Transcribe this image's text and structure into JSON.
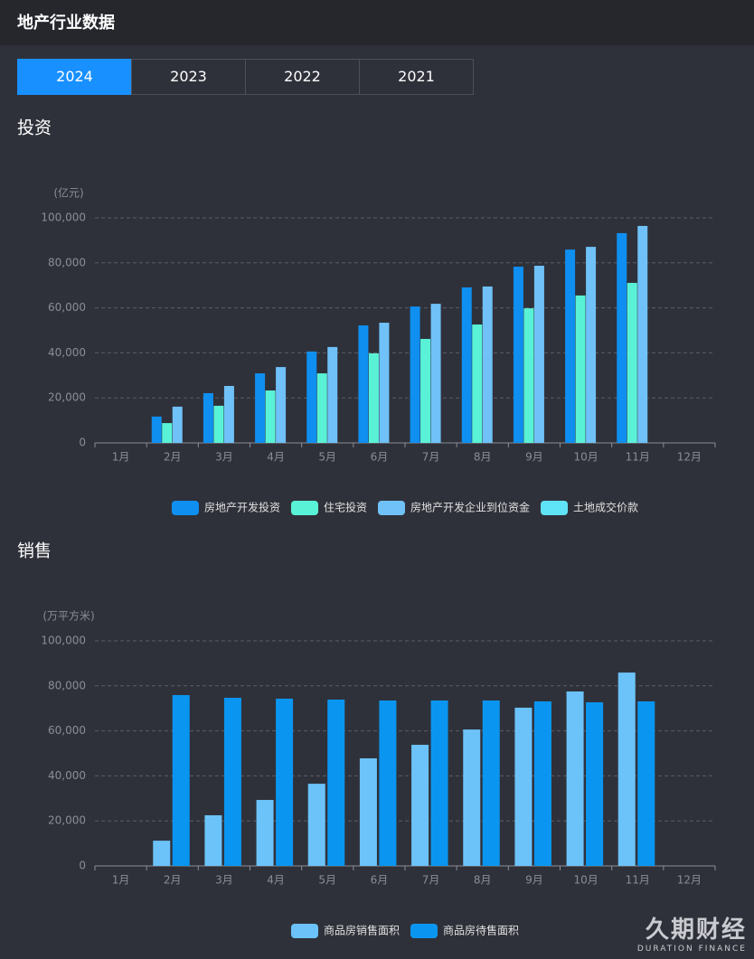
{
  "header": {
    "title": "地产行业数据"
  },
  "tabs": [
    "2024",
    "2023",
    "2022",
    "2021"
  ],
  "watermark": {
    "name": "久期财经",
    "subtitle": "DURATION FINANCE"
  },
  "chart_data": [
    {
      "type": "bar",
      "title": "投资",
      "y_label": "(亿元)",
      "categories": [
        "1月",
        "2月",
        "3月",
        "4月",
        "5月",
        "6月",
        "7月",
        "8月",
        "9月",
        "10月",
        "11月",
        "12月"
      ],
      "series": [
        {
          "name": "房地产开发投资",
          "color": "#0f8ff0",
          "values": [
            null,
            11700,
            22100,
            30900,
            40600,
            52200,
            60600,
            69100,
            78300,
            85900,
            93200,
            null
          ]
        },
        {
          "name": "住宅投资",
          "color": "#5af2d6",
          "values": [
            null,
            8800,
            16500,
            23300,
            30900,
            39800,
            46200,
            52600,
            59800,
            65500,
            71100,
            null
          ]
        },
        {
          "name": "房地产开发企业到位资金",
          "color": "#6fc1f8",
          "values": [
            null,
            16100,
            25300,
            33700,
            42600,
            53400,
            61800,
            69500,
            78700,
            87100,
            96400,
            null
          ]
        },
        {
          "name": "土地成交价款",
          "color": "#5fe3f7",
          "values": [
            null,
            null,
            null,
            null,
            null,
            null,
            null,
            null,
            null,
            null,
            null,
            null
          ]
        }
      ],
      "ylim": [
        0,
        100000
      ],
      "yticks": [
        0,
        {
          "value": 20000,
          "label": "20,000"
        },
        {
          "value": 40000,
          "label": "40,000"
        },
        {
          "value": 60000,
          "label": "60,000"
        },
        {
          "value": 80000,
          "label": "80,000"
        },
        {
          "value": 100000,
          "label": "100,000"
        }
      ],
      "grid": true
    },
    {
      "type": "bar",
      "title": "销售",
      "y_label": "(万平方米)",
      "categories": [
        "1月",
        "2月",
        "3月",
        "4月",
        "5月",
        "6月",
        "7月",
        "8月",
        "9月",
        "10月",
        "11月",
        "12月"
      ],
      "series": [
        {
          "name": "商品房销售面积",
          "color": "#6cc3fa",
          "values": [
            null,
            11200,
            22500,
            29300,
            36500,
            47800,
            53800,
            60600,
            70300,
            77500,
            85900,
            null
          ]
        },
        {
          "name": "商品房待售面积",
          "color": "#0a96f0",
          "values": [
            null,
            75900,
            74700,
            74300,
            73900,
            73500,
            73500,
            73500,
            73100,
            72700,
            73100,
            null
          ]
        }
      ],
      "ylim": [
        0,
        100000
      ],
      "yticks": [
        0,
        {
          "value": 20000,
          "label": "20,000"
        },
        {
          "value": 40000,
          "label": "40,000"
        },
        {
          "value": 60000,
          "label": "60,000"
        },
        {
          "value": 80000,
          "label": "80,000"
        },
        {
          "value": 100000,
          "label": "100,000"
        }
      ],
      "grid": true
    }
  ]
}
